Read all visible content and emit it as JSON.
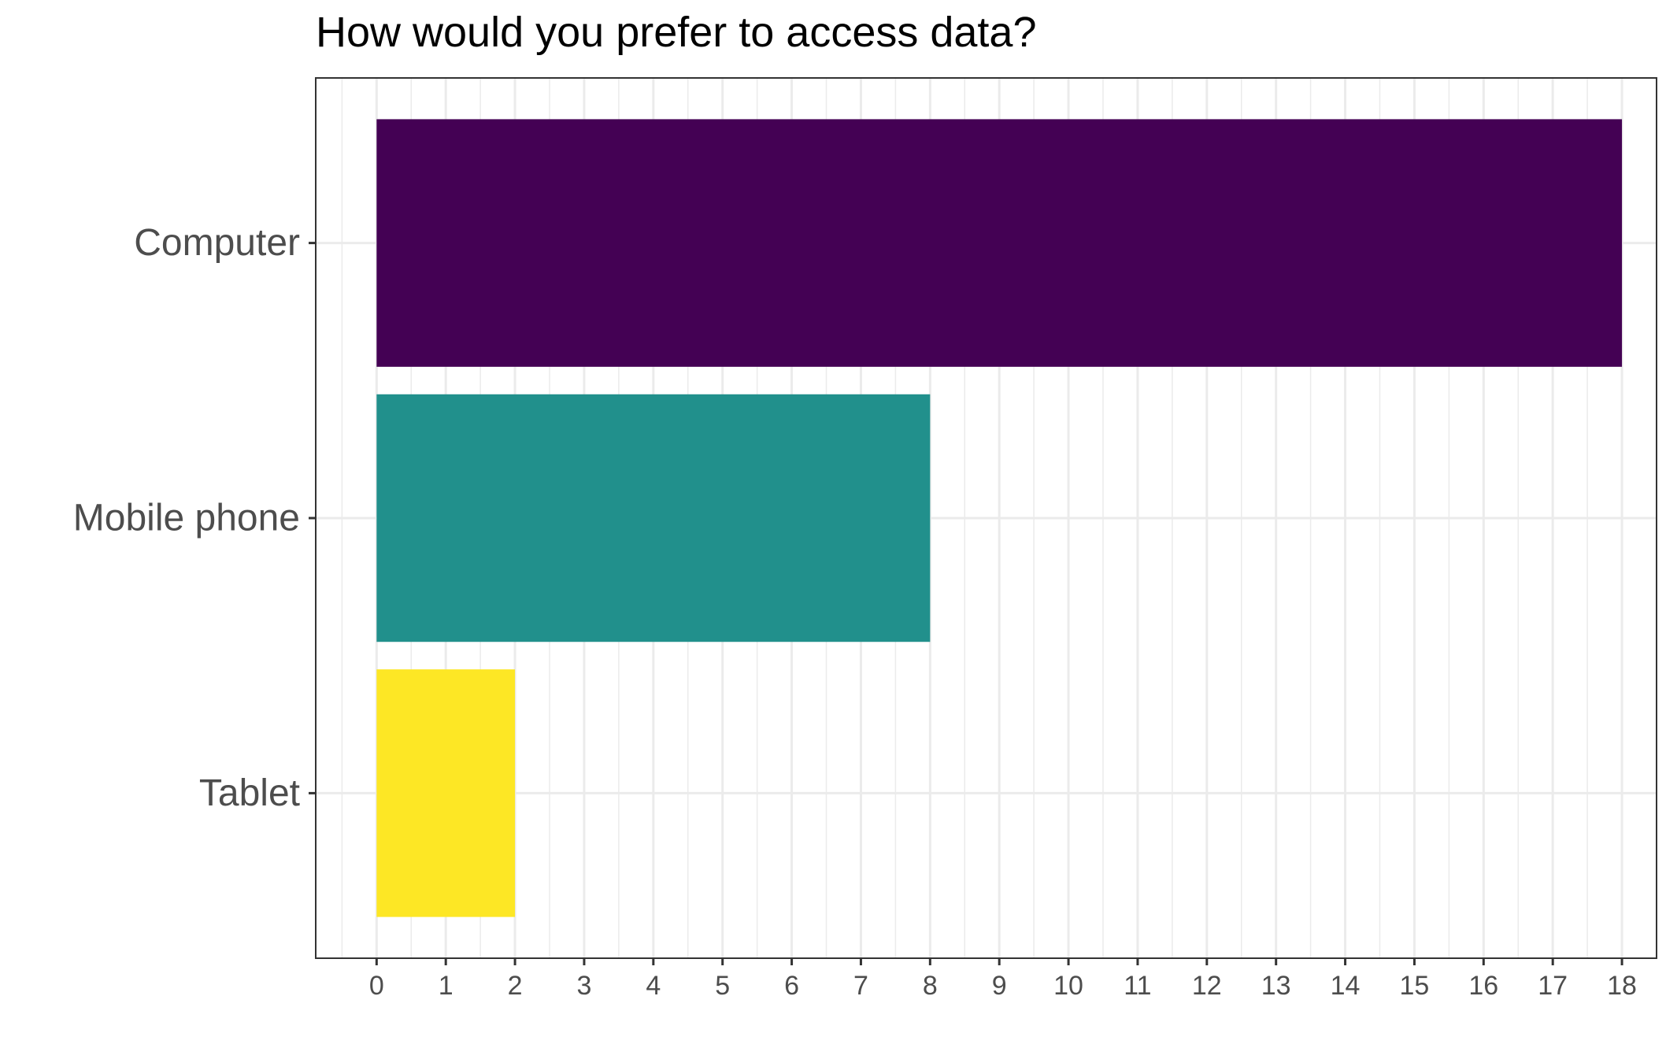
{
  "chart_data": {
    "type": "bar",
    "orientation": "horizontal",
    "title": "How would you prefer to access data?",
    "xlabel": "",
    "ylabel": "",
    "categories": [
      "Computer",
      "Mobile phone",
      "Tablet"
    ],
    "values": [
      18,
      8,
      2
    ],
    "colors": [
      "#440154",
      "#21908C",
      "#FDE725"
    ],
    "xlim": [
      -0.88,
      18.5
    ],
    "x_ticks": [
      "0",
      "1",
      "2",
      "3",
      "4",
      "5",
      "6",
      "7",
      "8",
      "9",
      "10",
      "11",
      "12",
      "13",
      "14",
      "15",
      "16",
      "17",
      "18"
    ],
    "grid": true,
    "legend": "none",
    "theme": {
      "grid_color": "#ebebeb",
      "panel_border": "#333333",
      "text_color": "#4d4d4d",
      "title_color": "#000000"
    }
  }
}
